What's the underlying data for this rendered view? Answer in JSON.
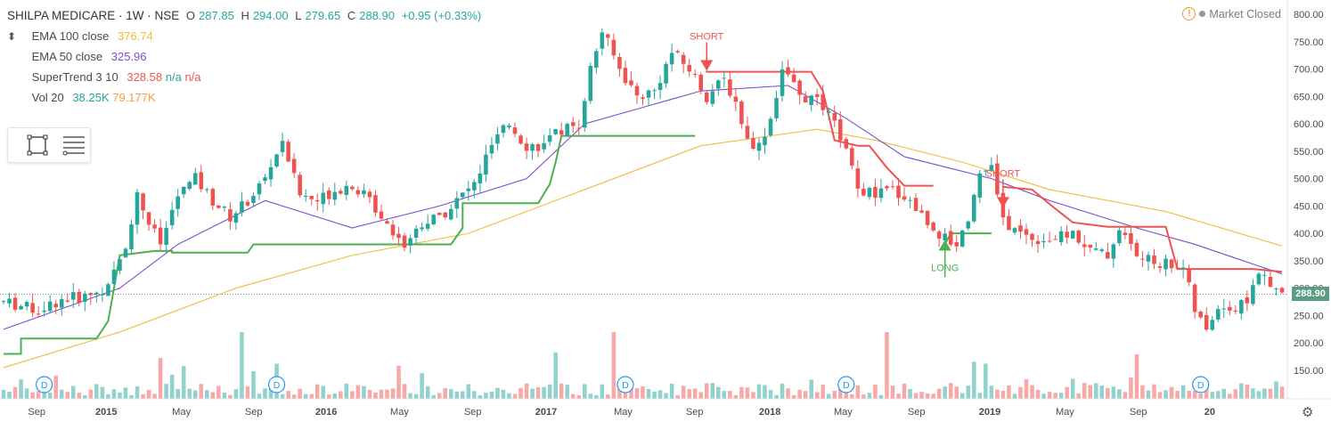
{
  "header": {
    "symbol": "SHILPA MEDICARE · 1W · NSE",
    "open_label": "O",
    "open": "287.85",
    "high_label": "H",
    "high": "294.00",
    "low_label": "L",
    "low": "279.65",
    "close_label": "C",
    "close": "288.90",
    "change": "+0.95 (+0.33%)"
  },
  "indicators": [
    {
      "name": "EMA 100 close",
      "values": [
        "376.74"
      ],
      "color": "#f4b93f"
    },
    {
      "name": "EMA 50 close",
      "values": [
        "325.96"
      ],
      "color": "#7c4ecb"
    },
    {
      "name": "SuperTrend 3 10",
      "values": [
        "328.58",
        "n/a",
        "n/a"
      ],
      "colors": [
        "#ef5350",
        "#26a69a",
        "#ef5350"
      ]
    },
    {
      "name": "Vol 20",
      "values": [
        "38.25K",
        "79.177K"
      ],
      "colors": [
        "#26a69a",
        "#f89c3c"
      ]
    }
  ],
  "market_status": "Market Closed",
  "current_price": "288.90",
  "icons": [
    "rectangle-select-icon",
    "list-icon",
    "warning-icon",
    "settings-gear-icon"
  ],
  "chart_data": {
    "type": "candlestick",
    "y_axis_ticks": [
      150,
      200,
      250,
      300,
      350,
      400,
      450,
      500,
      550,
      600,
      650,
      700,
      750,
      800
    ],
    "y_axis_labels": [
      "150.00",
      "200.00",
      "250.00",
      "300.00",
      "350.00",
      "400.00",
      "450.00",
      "500.00",
      "550.00",
      "600.00",
      "650.00",
      "700.00",
      "750.00",
      "800.00"
    ],
    "x_axis_labels": [
      "Sep",
      "2015",
      "May",
      "Sep",
      "2016",
      "May",
      "Sep",
      "2017",
      "May",
      "Sep",
      "2018",
      "May",
      "Sep",
      "2019",
      "May",
      "Sep",
      "20"
    ],
    "ylim": [
      110,
      810
    ],
    "price_path": [
      [
        0,
        275
      ],
      [
        6,
        260
      ],
      [
        10,
        280
      ],
      [
        14,
        285
      ],
      [
        18,
        300
      ],
      [
        21,
        380
      ],
      [
        23,
        470
      ],
      [
        25,
        420
      ],
      [
        27,
        380
      ],
      [
        30,
        470
      ],
      [
        33,
        500
      ],
      [
        36,
        460
      ],
      [
        39,
        430
      ],
      [
        42,
        460
      ],
      [
        45,
        500
      ],
      [
        48,
        570
      ],
      [
        51,
        470
      ],
      [
        54,
        460
      ],
      [
        57,
        480
      ],
      [
        60,
        490
      ],
      [
        63,
        460
      ],
      [
        66,
        420
      ],
      [
        69,
        380
      ],
      [
        72,
        420
      ],
      [
        75,
        430
      ],
      [
        78,
        460
      ],
      [
        81,
        490
      ],
      [
        84,
        560
      ],
      [
        87,
        600
      ],
      [
        90,
        560
      ],
      [
        93,
        560
      ],
      [
        96,
        590
      ],
      [
        99,
        600
      ],
      [
        101,
        700
      ],
      [
        103,
        770
      ],
      [
        106,
        700
      ],
      [
        109,
        650
      ],
      [
        112,
        660
      ],
      [
        115,
        730
      ],
      [
        118,
        700
      ],
      [
        121,
        650
      ],
      [
        124,
        680
      ],
      [
        126,
        640
      ],
      [
        128,
        570
      ],
      [
        130,
        560
      ],
      [
        132,
        610
      ],
      [
        134,
        700
      ],
      [
        137,
        650
      ],
      [
        140,
        640
      ],
      [
        143,
        600
      ],
      [
        145,
        550
      ],
      [
        147,
        480
      ],
      [
        150,
        470
      ],
      [
        153,
        480
      ],
      [
        156,
        460
      ],
      [
        159,
        420
      ],
      [
        162,
        390
      ],
      [
        164,
        380
      ],
      [
        166,
        430
      ],
      [
        168,
        510
      ],
      [
        170,
        520
      ],
      [
        172,
        420
      ],
      [
        175,
        400
      ],
      [
        178,
        390
      ],
      [
        181,
        390
      ],
      [
        184,
        400
      ],
      [
        187,
        370
      ],
      [
        190,
        360
      ],
      [
        192,
        410
      ],
      [
        195,
        360
      ],
      [
        197,
        350
      ],
      [
        200,
        345
      ],
      [
        203,
        340
      ],
      [
        205,
        260
      ],
      [
        207,
        220
      ],
      [
        209,
        270
      ],
      [
        212,
        260
      ],
      [
        214,
        280
      ],
      [
        216,
        330
      ],
      [
        218,
        300
      ],
      [
        220,
        289
      ]
    ],
    "ema100_path": [
      [
        0,
        155
      ],
      [
        20,
        220
      ],
      [
        40,
        300
      ],
      [
        60,
        360
      ],
      [
        80,
        400
      ],
      [
        100,
        480
      ],
      [
        120,
        560
      ],
      [
        140,
        590
      ],
      [
        150,
        570
      ],
      [
        165,
        530
      ],
      [
        180,
        480
      ],
      [
        200,
        440
      ],
      [
        220,
        377
      ]
    ],
    "ema50_path": [
      [
        0,
        225
      ],
      [
        20,
        300
      ],
      [
        30,
        380
      ],
      [
        45,
        460
      ],
      [
        60,
        410
      ],
      [
        75,
        450
      ],
      [
        90,
        500
      ],
      [
        100,
        600
      ],
      [
        110,
        630
      ],
      [
        120,
        660
      ],
      [
        135,
        670
      ],
      [
        145,
        610
      ],
      [
        155,
        540
      ],
      [
        170,
        500
      ],
      [
        180,
        460
      ],
      [
        195,
        410
      ],
      [
        205,
        380
      ],
      [
        220,
        326
      ]
    ],
    "supertrend_segments": [
      {
        "color": "#4caf50",
        "path": [
          [
            0,
            180
          ],
          [
            3,
            180
          ],
          [
            3,
            208
          ],
          [
            16,
            208
          ],
          [
            18,
            240
          ],
          [
            20,
            360
          ],
          [
            26,
            368
          ],
          [
            29,
            368
          ],
          [
            29,
            365
          ],
          [
            42,
            365
          ],
          [
            43,
            380
          ],
          [
            77,
            380
          ],
          [
            79,
            410
          ],
          [
            79,
            455
          ],
          [
            92,
            455
          ],
          [
            94,
            490
          ],
          [
            95,
            530
          ],
          [
            96,
            578
          ],
          [
            119,
            578
          ],
          [
            119,
            578
          ]
        ]
      },
      {
        "color": "#ef5350",
        "path": [
          [
            121,
            697
          ],
          [
            121,
            695
          ],
          [
            139,
            695
          ],
          [
            141,
            660
          ],
          [
            143,
            570
          ],
          [
            147,
            560
          ],
          [
            149,
            560
          ],
          [
            152,
            520
          ],
          [
            155,
            487
          ],
          [
            160,
            487
          ]
        ]
      },
      {
        "color": "#4caf50",
        "path": [
          [
            162,
            380
          ],
          [
            163,
            400
          ],
          [
            170,
            400
          ],
          [
            170,
            400
          ]
        ]
      },
      {
        "color": "#ef5350",
        "path": [
          [
            172,
            485
          ],
          [
            177,
            480
          ],
          [
            181,
            445
          ],
          [
            184,
            420
          ],
          [
            190,
            412
          ],
          [
            200,
            412
          ],
          [
            202,
            335
          ],
          [
            215,
            335
          ],
          [
            220,
            330
          ]
        ]
      }
    ],
    "signals": [
      {
        "label": "SHORT",
        "type": "short",
        "x": 121,
        "y": 700
      },
      {
        "label": "LONG",
        "type": "long",
        "x": 162,
        "y": 385
      },
      {
        "label": "SHORT",
        "type": "short",
        "x": 172,
        "y": 450
      }
    ],
    "dividend_markers": [
      "D",
      "D",
      "D",
      "D",
      "D"
    ],
    "dividend_x": [
      7,
      47,
      107,
      145,
      206
    ]
  }
}
